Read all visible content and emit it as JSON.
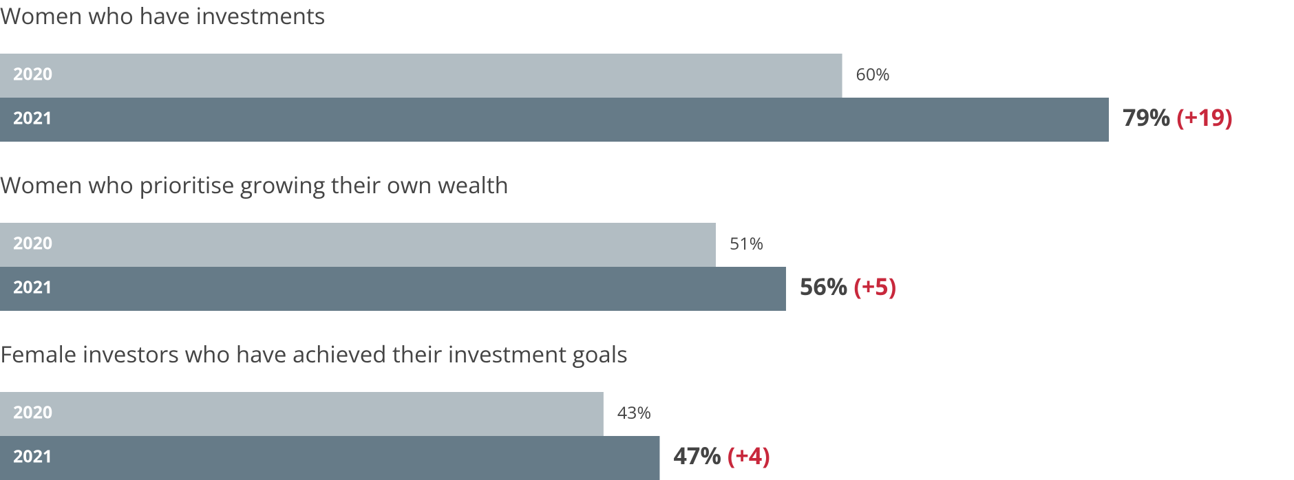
{
  "chart_data": [
    {
      "type": "bar",
      "orientation": "horizontal",
      "title": "Women who have investments",
      "categories": [
        "2020",
        "2021"
      ],
      "values": [
        60,
        79
      ],
      "value_labels": [
        "60%",
        "79%"
      ],
      "annotation": "(+19)",
      "colors": [
        "#b2bdc3",
        "#667b88"
      ]
    },
    {
      "type": "bar",
      "orientation": "horizontal",
      "title": "Women who prioritise growing their own wealth",
      "categories": [
        "2020",
        "2021"
      ],
      "values": [
        51,
        56
      ],
      "value_labels": [
        "51%",
        "56%"
      ],
      "annotation": "(+5)",
      "colors": [
        "#b2bdc3",
        "#667b88"
      ]
    },
    {
      "type": "bar",
      "orientation": "horizontal",
      "title": "Female investors who have achieved their investment goals",
      "categories": [
        "2020",
        "2021"
      ],
      "values": [
        43,
        47
      ],
      "value_labels": [
        "43%",
        "47%"
      ],
      "annotation": "(+4)",
      "colors": [
        "#b2bdc3",
        "#667b88"
      ]
    }
  ]
}
